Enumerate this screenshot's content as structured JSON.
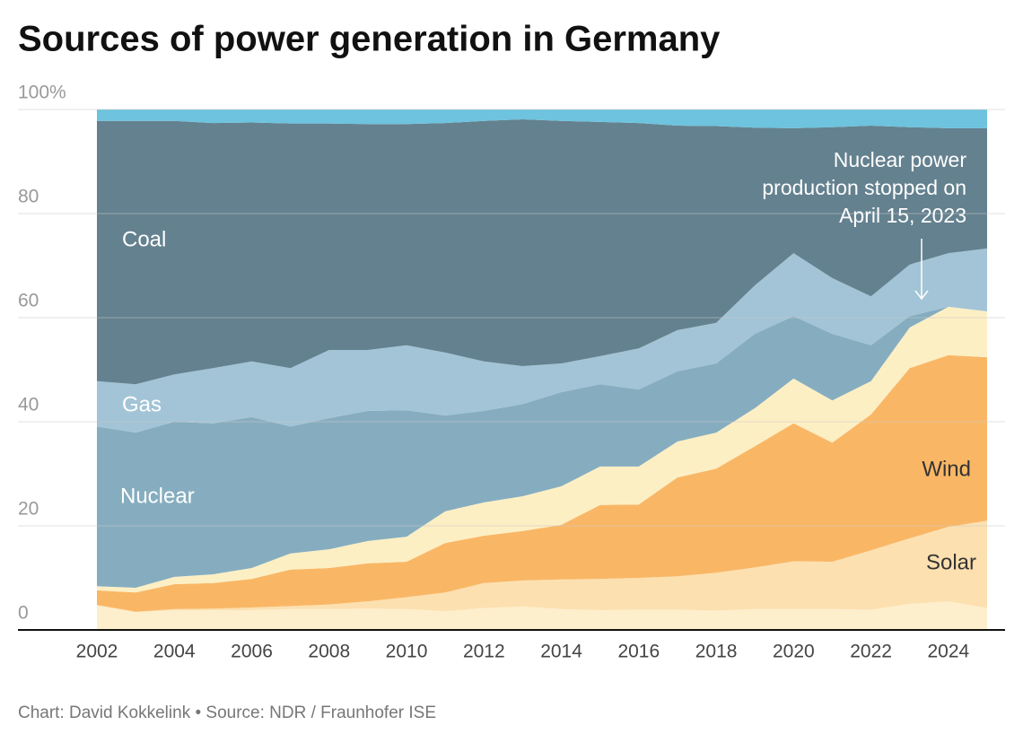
{
  "chart_data": {
    "type": "stacked-area",
    "title": "Sources of power generation in Germany",
    "source": "Chart: David Kokkelink • Source: NDR / Fraunhofer ISE",
    "annotation": [
      "Nuclear power",
      "production stopped on",
      "April 15, 2023"
    ],
    "x": [
      2002,
      2003,
      2004,
      2005,
      2006,
      2007,
      2008,
      2009,
      2010,
      2011,
      2012,
      2013,
      2014,
      2015,
      2016,
      2017,
      2018,
      2019,
      2020,
      2021,
      2022,
      2023,
      2024,
      2025
    ],
    "xlim": [
      2002,
      2025
    ],
    "xticks": [
      2002,
      2004,
      2006,
      2008,
      2010,
      2012,
      2014,
      2016,
      2018,
      2020,
      2022,
      2024
    ],
    "ylim": [
      0,
      100
    ],
    "yticks": [
      0,
      20,
      40,
      60,
      80,
      {
        "value": 100,
        "label": "100%"
      }
    ],
    "grid": true,
    "series": [
      {
        "name": null,
        "color": "#fdefcc",
        "values": [
          4.7,
          3.4,
          3.8,
          3.8,
          3.8,
          4.0,
          4.0,
          4.1,
          4.0,
          3.6,
          4.2,
          4.5,
          4.0,
          3.8,
          3.9,
          3.9,
          3.7,
          4.0,
          4.0,
          4.0,
          3.9,
          5.0,
          5.5,
          4.2
        ]
      },
      {
        "name": "Solar",
        "color": "#fde0b0",
        "values": [
          0.1,
          0.1,
          0.2,
          0.3,
          0.5,
          0.6,
          0.9,
          1.4,
          2.3,
          3.6,
          4.8,
          5.0,
          5.7,
          6.0,
          6.1,
          6.4,
          7.3,
          8.0,
          9.2,
          9.1,
          11.4,
          12.6,
          14.3,
          16.8
        ]
      },
      {
        "name": "Wind",
        "color": "#f9b766",
        "values": [
          2.8,
          3.7,
          4.8,
          4.9,
          5.5,
          7.0,
          7.0,
          7.3,
          6.8,
          9.5,
          9.1,
          9.5,
          10.5,
          14.2,
          14.1,
          19.0,
          20.0,
          23.3,
          26.5,
          22.9,
          26.1,
          32.7,
          33.0,
          31.4
        ]
      },
      {
        "name": null,
        "color": "#fdefc4",
        "values": [
          0.8,
          0.9,
          1.4,
          1.7,
          2.1,
          3.1,
          3.6,
          4.3,
          4.8,
          6.1,
          6.4,
          6.7,
          7.4,
          7.4,
          7.3,
          6.9,
          6.9,
          7.3,
          8.6,
          8.1,
          6.4,
          7.8,
          9.3,
          8.8
        ]
      },
      {
        "name": "Nuclear",
        "color": "#86adbf",
        "values": [
          30.7,
          29.8,
          29.8,
          29.0,
          29.0,
          24.4,
          25.2,
          25.0,
          24.3,
          18.4,
          17.6,
          17.7,
          18.1,
          15.8,
          14.8,
          13.5,
          13.3,
          14.3,
          12.0,
          12.8,
          6.9,
          2.2,
          0,
          0
        ]
      },
      {
        "name": "Gas",
        "color": "#a2c4d6",
        "values": [
          8.7,
          9.3,
          9.1,
          10.6,
          10.7,
          11.2,
          13.1,
          11.7,
          12.5,
          12.1,
          9.5,
          7.3,
          5.5,
          5.4,
          7.9,
          7.9,
          7.8,
          9.3,
          12.1,
          10.7,
          9.4,
          9.9,
          10.3,
          12.1
        ]
      },
      {
        "name": "Coal",
        "color": "#64818f",
        "values": [
          50.0,
          50.6,
          48.7,
          47.1,
          45.9,
          47.0,
          43.5,
          43.4,
          42.5,
          44.1,
          46.2,
          47.4,
          46.6,
          45.0,
          43.3,
          39.3,
          37.8,
          30.3,
          24.0,
          29.0,
          32.8,
          26.4,
          24.0,
          23.1
        ]
      },
      {
        "name": null,
        "color": "#6ec3de",
        "values": [
          2.2,
          2.2,
          2.2,
          2.6,
          2.5,
          2.7,
          2.7,
          2.8,
          2.8,
          2.6,
          2.2,
          1.9,
          2.2,
          2.4,
          2.6,
          3.1,
          3.2,
          3.5,
          3.6,
          3.4,
          3.1,
          3.4,
          3.6,
          3.6
        ]
      }
    ]
  }
}
